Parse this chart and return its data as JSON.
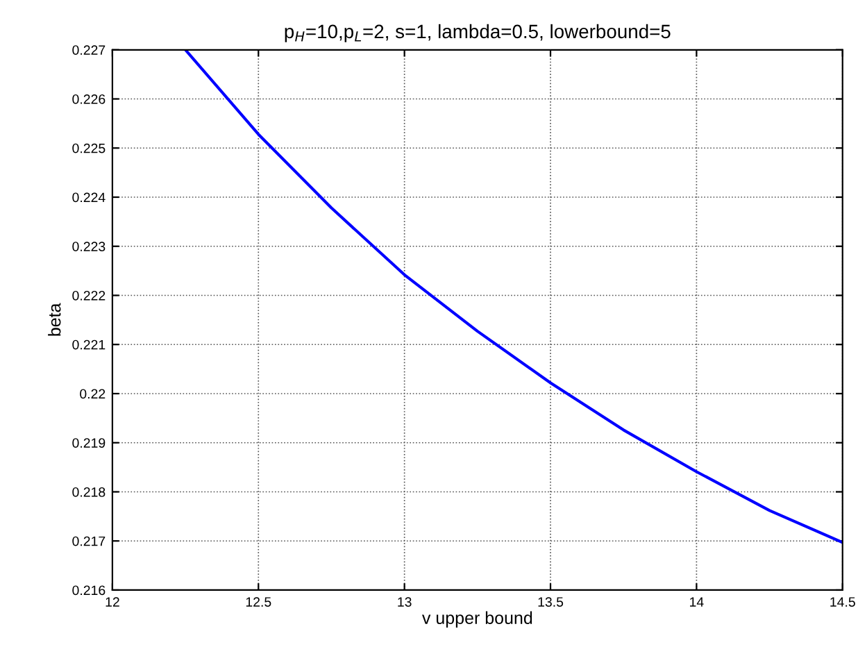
{
  "chart_data": {
    "type": "line",
    "title": "p$_{H}$=10,p$_{L}$=2, s=1, lambda=0.5, lowerbound=5",
    "xlabel": "v upper bound",
    "ylabel": "beta",
    "x": [
      12.25,
      12.5,
      12.75,
      13.0,
      13.25,
      13.5,
      13.75,
      14.0,
      14.25,
      14.5
    ],
    "series": [
      {
        "color": "#0000ff",
        "values": [
          0.227,
          0.22528,
          0.22378,
          0.22242,
          0.22127,
          0.22022,
          0.21926,
          0.21841,
          0.21762,
          0.21697
        ]
      }
    ],
    "xlim": [
      12,
      14.5
    ],
    "xticks": [
      12,
      12.5,
      13,
      13.5,
      14,
      14.5
    ],
    "ylim": [
      0.216,
      0.227
    ],
    "yticks": [
      0.216,
      0.217,
      0.218,
      0.219,
      0.22,
      0.221,
      0.222,
      0.223,
      0.224,
      0.225,
      0.226,
      0.227
    ],
    "grid": true,
    "marker": "none",
    "line_style": "solid"
  }
}
